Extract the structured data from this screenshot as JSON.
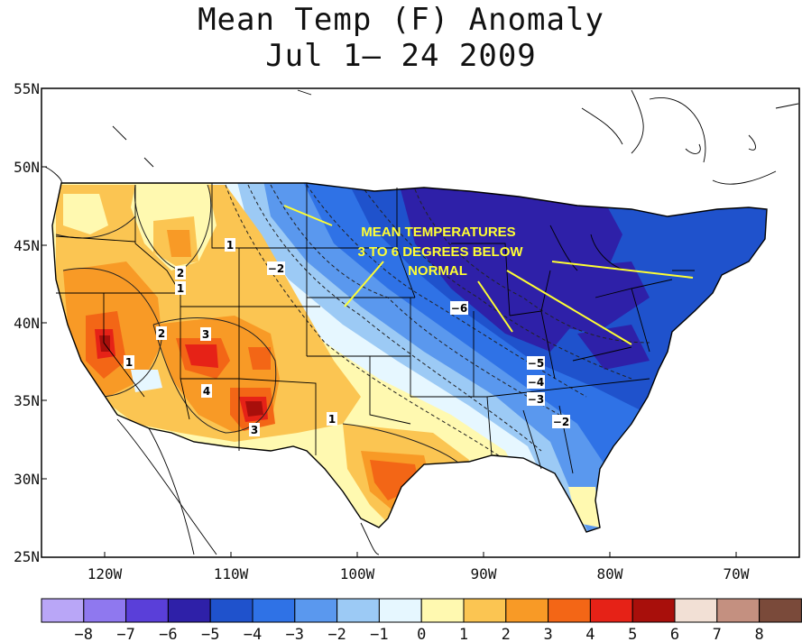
{
  "title": {
    "line1": "Mean Temp (F) Anomaly",
    "line2": "Jul 1— 24 2009"
  },
  "axes": {
    "lat_labels": [
      "55N",
      "50N",
      "45N",
      "40N",
      "35N",
      "30N",
      "25N"
    ],
    "lon_labels": [
      "120W",
      "110W",
      "100W",
      "90W",
      "80W",
      "70W"
    ]
  },
  "annotation": {
    "lines": [
      "MEAN TEMPERATURES",
      "3 TO 6 DEGREES BELOW",
      "NORMAL"
    ]
  },
  "contour_labels": [
    {
      "name": "contour-label-n2-northwest",
      "text": "−2"
    },
    {
      "name": "contour-label-1-idaho",
      "text": "1"
    },
    {
      "name": "contour-label-2-idaho",
      "text": "2"
    },
    {
      "name": "contour-label-1-idaho-south",
      "text": "1"
    },
    {
      "name": "contour-label-1-oregon",
      "text": "1"
    },
    {
      "name": "contour-label-1-california",
      "text": "1"
    },
    {
      "name": "contour-label-2-nevada",
      "text": "2"
    },
    {
      "name": "contour-label-3-utah",
      "text": "3"
    },
    {
      "name": "contour-label-4-utah",
      "text": "4"
    },
    {
      "name": "contour-label-3-arizona",
      "text": "3"
    },
    {
      "name": "contour-label-1-newmexico",
      "text": "1"
    },
    {
      "name": "contour-label-n6-iowa",
      "text": "−6"
    },
    {
      "name": "contour-label-n5-kentucky",
      "text": "−5"
    },
    {
      "name": "contour-label-n4-kentucky",
      "text": "−4"
    },
    {
      "name": "contour-label-n3-tennessee",
      "text": "−3"
    },
    {
      "name": "contour-label-n2-georgia",
      "text": "−2"
    }
  ],
  "legend": {
    "colors": [
      "#b9a6f7",
      "#8f78ef",
      "#5a3fd9",
      "#2e20a8",
      "#1f52cc",
      "#2f72e6",
      "#5a98ee",
      "#9ccaf5",
      "#e6f7ff",
      "#fff9b0",
      "#fbc552",
      "#f89a26",
      "#f36616",
      "#e62217",
      "#a80f0b",
      "#f2e0d5",
      "#c49080",
      "#7a4a3a"
    ],
    "labels": [
      "−8",
      "−7",
      "−6",
      "−5",
      "−4",
      "−3",
      "−2",
      "−1",
      "0",
      "1",
      "2",
      "3",
      "4",
      "5",
      "6",
      "7",
      "8"
    ]
  }
}
